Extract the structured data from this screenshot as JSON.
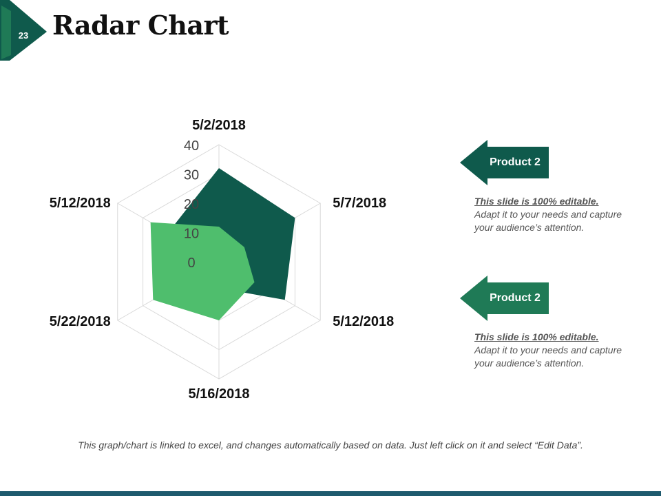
{
  "slide_number": "23",
  "title": "Radar Chart",
  "colors": {
    "dark_green": "#0f5a4c",
    "medium_green": "#1f7a56",
    "light_green": "#4fbe6d",
    "grid": "#d9d9d9"
  },
  "chart_data": {
    "type": "radar",
    "categories": [
      "5/2/2018",
      "5/7/2018",
      "5/12/2018",
      "5/16/2018",
      "5/22/2018",
      "5/12/2018"
    ],
    "radial_ticks": [
      "0",
      "10",
      "20",
      "30",
      "40"
    ],
    "rlim": [
      0,
      40
    ],
    "grid": true,
    "series": [
      {
        "name": "",
        "values": [
          32,
          30,
          26,
          9,
          8,
          20
        ]
      },
      {
        "name": "",
        "values": [
          12,
          10,
          14,
          20,
          26,
          27
        ]
      }
    ]
  },
  "callouts": [
    {
      "label": "Product 2",
      "lead": "This slide is 100% editable.",
      "body": "Adapt it to your needs and capture your audience’s attention."
    },
    {
      "label": "Product 2",
      "lead": "This slide is 100% editable.",
      "body": "Adapt it to your needs and capture your audience’s attention."
    }
  ],
  "footnote": "This graph/chart is linked to excel, and changes automatically based on data. Just left click on it and select “Edit Data”."
}
